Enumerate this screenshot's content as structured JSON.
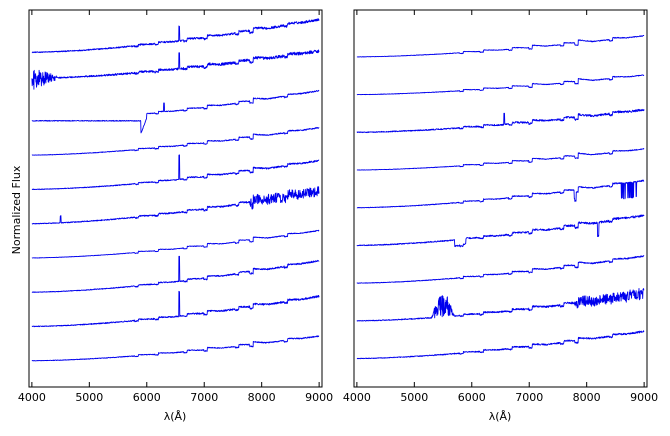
{
  "chart_data": [
    {
      "type": "line",
      "panel": "left",
      "title": "",
      "xlabel": "λ(Å)",
      "ylabel": "Normalized Flux",
      "xlim": [
        3950,
        9050
      ],
      "x_ticks": [
        4000,
        5000,
        6000,
        7000,
        8000,
        9000
      ],
      "y_ticks_shown": false,
      "grid": false,
      "legend": "none",
      "line_color": "#0000ee",
      "series": [
        {
          "offset": 10,
          "start_level": 0.0,
          "end_level": 1.2,
          "noise": 0.06,
          "features": [
            "H-alpha emission spike at 6563",
            "TiO bands 7050-7150 and 7600-8200"
          ]
        },
        {
          "offset": 9,
          "start_level": 0.3,
          "end_level": 1.3,
          "noise": 0.08,
          "features": [
            "strong noise below 4500",
            "H-alpha emission spike at 6563",
            "TiO bands"
          ]
        },
        {
          "offset": 8,
          "start_level": 0.0,
          "end_level": 1.1,
          "noise": 0.03,
          "features": [
            "flat until ~5900, sharp absorption dip at 5900",
            "emission at 6300 and 6563"
          ]
        },
        {
          "offset": 7,
          "start_level": 0.0,
          "end_level": 1.0,
          "noise": 0.03,
          "features": [
            "smooth rise, TiO bands"
          ]
        },
        {
          "offset": 6,
          "start_level": 0.0,
          "end_level": 1.05,
          "noise": 0.04,
          "features": [
            "H-alpha emission at 6563",
            "TiO bands"
          ]
        },
        {
          "offset": 5,
          "start_level": 0.0,
          "end_level": 1.2,
          "noise": 0.05,
          "features": [
            "small spike near 4500",
            "noisy red end",
            "TiO bands"
          ]
        },
        {
          "offset": 4,
          "start_level": 0.0,
          "end_level": 1.0,
          "noise": 0.02,
          "features": [
            "smooth rise, TiO bands"
          ]
        },
        {
          "offset": 3,
          "start_level": 0.0,
          "end_level": 1.15,
          "noise": 0.04,
          "features": [
            "H-alpha emission at 6563",
            "TiO bands"
          ]
        },
        {
          "offset": 2,
          "start_level": 0.0,
          "end_level": 1.1,
          "noise": 0.05,
          "features": [
            "H-alpha emission at 6563",
            "TiO bands"
          ]
        },
        {
          "offset": 1,
          "start_level": 0.0,
          "end_level": 0.9,
          "noise": 0.03,
          "features": [
            "smooth rise, TiO bands"
          ]
        }
      ]
    },
    {
      "type": "line",
      "panel": "right",
      "title": "",
      "xlabel": "λ(Å)",
      "ylabel": "",
      "xlim": [
        3950,
        9050
      ],
      "x_ticks": [
        4000,
        5000,
        6000,
        7000,
        8000,
        9000
      ],
      "y_ticks_shown": false,
      "grid": false,
      "legend": "none",
      "line_color": "#0000ee",
      "series": [
        {
          "offset": 9,
          "start_level": 0.0,
          "end_level": 0.7,
          "noise": 0.02,
          "features": [
            "smooth rise, TiO bands"
          ]
        },
        {
          "offset": 8,
          "start_level": 0.0,
          "end_level": 0.65,
          "noise": 0.02,
          "features": [
            "smooth rise, TiO bands"
          ]
        },
        {
          "offset": 7,
          "start_level": 0.0,
          "end_level": 0.75,
          "noise": 0.05,
          "features": [
            "emission at 6563",
            "TiO bands"
          ]
        },
        {
          "offset": 6,
          "start_level": 0.0,
          "end_level": 0.7,
          "noise": 0.02,
          "features": [
            "smooth rise, TiO bands"
          ]
        },
        {
          "offset": 5,
          "start_level": 0.0,
          "end_level": 0.9,
          "noise": 0.03,
          "features": [
            "absorption notches near 7800 and 8600-8900"
          ]
        },
        {
          "offset": 4,
          "start_level": 0.0,
          "end_level": 1.0,
          "noise": 0.05,
          "features": [
            "step near 5700",
            "dip near 8200"
          ]
        },
        {
          "offset": 3,
          "start_level": 0.0,
          "end_level": 0.9,
          "noise": 0.03,
          "features": [
            "smooth rise, TiO bands"
          ]
        },
        {
          "offset": 2,
          "start_level": 0.0,
          "end_level": 0.9,
          "noise": 0.05,
          "features": [
            "large emission burst 5300-5700",
            "noisy red end"
          ]
        },
        {
          "offset": 1,
          "start_level": 0.0,
          "end_level": 0.9,
          "noise": 0.04,
          "features": [
            "smooth rise, TiO bands"
          ]
        }
      ]
    }
  ]
}
